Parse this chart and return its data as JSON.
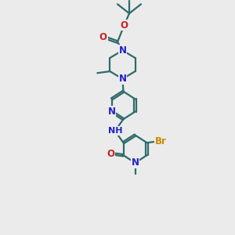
{
  "bg_color": "#ebebeb",
  "bond_color": "#2d6b6b",
  "N_color": "#2020cc",
  "O_color": "#cc2020",
  "Br_color": "#cc8800",
  "line_width": 1.6,
  "font_size": 8.5,
  "xlim": [
    0,
    10
  ],
  "ylim": [
    0,
    14
  ]
}
